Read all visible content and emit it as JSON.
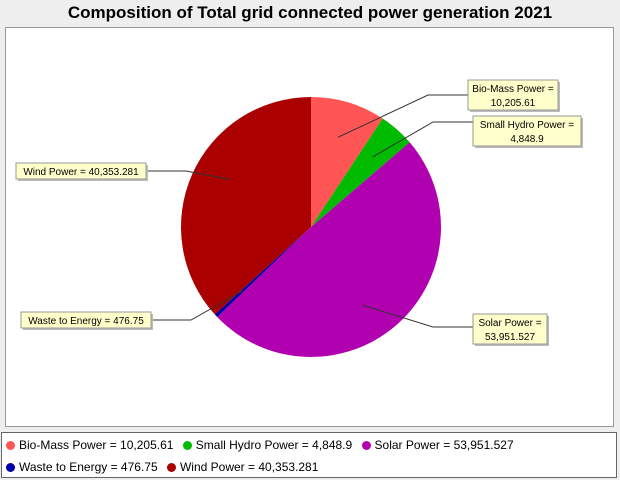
{
  "chart_data": {
    "type": "pie",
    "title": "Composition of Total grid connected power generation 2021",
    "slices": [
      {
        "name": "Bio-Mass Power",
        "value": 10205.61,
        "label_line1": "Bio-Mass Power =",
        "label_line2": "10,205.61",
        "legend_label": "Bio-Mass Power = 10,205.61",
        "color": "#ff5555"
      },
      {
        "name": "Small Hydro Power",
        "value": 4848.9,
        "label_line1": "Small Hydro Power =",
        "label_line2": "4,848.9",
        "legend_label": "Small Hydro Power = 4,848.9",
        "color": "#00bb00"
      },
      {
        "name": "Solar Power",
        "value": 53951.527,
        "label_line1": "Solar Power =",
        "label_line2": "53,951.527",
        "legend_label": "Solar Power = 53,951.527",
        "color": "#b000b0"
      },
      {
        "name": "Waste to Energy",
        "value": 476.75,
        "label_line1": "Waste to Energy = 476.75",
        "label_line2": "",
        "legend_label": "Waste to Energy = 476.75",
        "color": "#0000aa"
      },
      {
        "name": "Wind Power",
        "value": 40353.281,
        "label_line1": "Wind Power = 40,353.281",
        "label_line2": "",
        "legend_label": "Wind Power = 40,353.281",
        "color": "#aa0000"
      }
    ],
    "start_angle_deg": 90,
    "direction": "clockwise",
    "legend_position": "bottom"
  },
  "colors": {
    "label_box_fill": "#ffffcc",
    "label_box_border": "#999999",
    "plot_background": "#ffffff",
    "page_background": "#eeeeee"
  }
}
